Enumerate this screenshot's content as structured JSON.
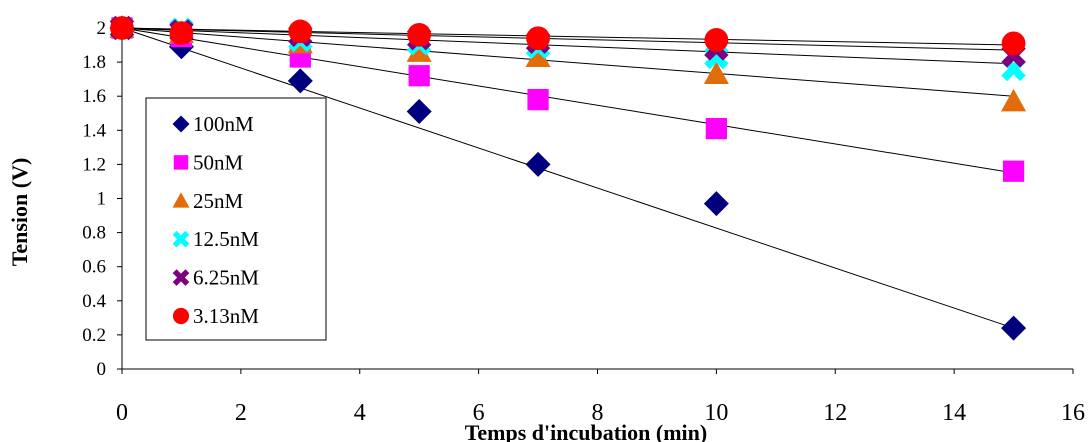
{
  "chart_data": {
    "type": "scatter",
    "xlabel": "Temps d'incubation (min)",
    "ylabel": "Tension  (V)",
    "xlim": [
      0,
      16
    ],
    "ylim": [
      0,
      2
    ],
    "xticks": [
      "0",
      "2",
      "4",
      "6",
      "8",
      "10",
      "12",
      "14",
      "16"
    ],
    "yticks": [
      "0",
      "0.2",
      "0.4",
      "0.6",
      "0.8",
      "1",
      "1.2",
      "1.4",
      "1.6",
      "1.8",
      "2"
    ],
    "grid": false,
    "legend_position": "left",
    "trendlines": true,
    "x": [
      0,
      1,
      3,
      5,
      7,
      10,
      15
    ],
    "series": [
      {
        "name": "100nM",
        "marker": "diamond",
        "color": "#00007f",
        "values": [
          2.0,
          1.89,
          1.69,
          1.51,
          1.2,
          0.97,
          0.24
        ],
        "trend": [
          2.0,
          0.24
        ]
      },
      {
        "name": "50nM",
        "marker": "square",
        "color": "#ff00ff",
        "values": [
          2.0,
          1.95,
          1.83,
          1.72,
          1.58,
          1.41,
          1.16
        ],
        "trend": [
          2.0,
          1.15
        ]
      },
      {
        "name": "25nM",
        "marker": "triangle",
        "color": "#e26b0a",
        "values": [
          2.0,
          1.97,
          1.91,
          1.86,
          1.83,
          1.73,
          1.57
        ],
        "trend": [
          2.0,
          1.6
        ]
      },
      {
        "name": "12.5nM",
        "marker": "x",
        "color": "#00ffff",
        "values": [
          2.0,
          1.99,
          1.93,
          1.91,
          1.89,
          1.83,
          1.76
        ],
        "trend": [
          2.0,
          1.79
        ]
      },
      {
        "name": "6.25nM",
        "marker": "x",
        "color": "#7f007f",
        "values": [
          2.0,
          1.98,
          1.96,
          1.94,
          1.92,
          1.88,
          1.84
        ],
        "trend": [
          2.0,
          1.87
        ]
      },
      {
        "name": "3.13nM",
        "marker": "circle",
        "color": "#ff0000",
        "values": [
          2.0,
          1.97,
          1.98,
          1.96,
          1.94,
          1.93,
          1.91
        ],
        "trend": [
          2.0,
          1.9
        ]
      }
    ]
  }
}
